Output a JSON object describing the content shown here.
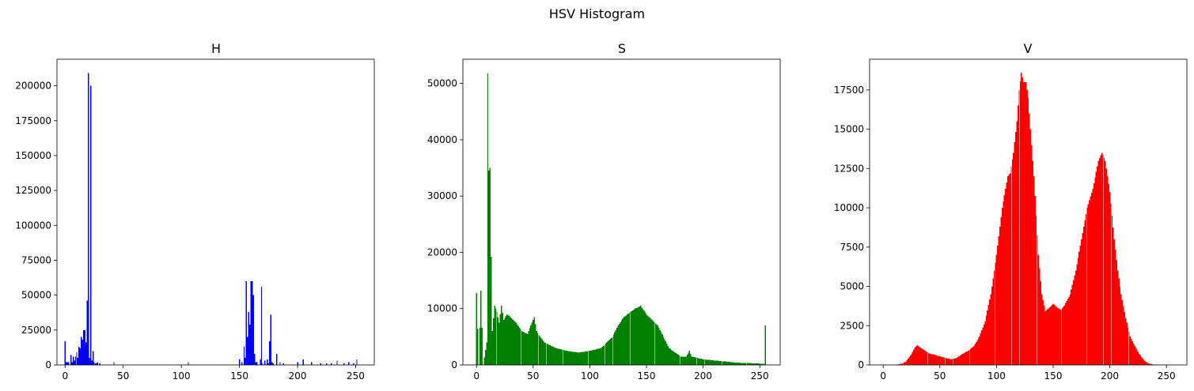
{
  "figure": {
    "title": "HSV Histogram"
  },
  "chart_data": [
    {
      "type": "bar",
      "title": "H",
      "color": "#0000ff",
      "xlim": [
        -7,
        266
      ],
      "ylim": [
        0,
        219000
      ],
      "xticks": [
        0,
        50,
        100,
        150,
        200,
        250
      ],
      "yticks": [
        0,
        25000,
        50000,
        75000,
        100000,
        125000,
        150000,
        175000,
        200000
      ],
      "x": [
        0,
        1,
        2,
        3,
        5,
        6,
        7,
        8,
        9,
        10,
        11,
        12,
        13,
        14,
        15,
        16,
        17,
        18,
        19,
        20,
        21,
        22,
        23,
        24,
        25,
        26,
        27,
        28,
        30,
        42,
        106,
        150,
        152,
        154,
        155,
        156,
        157,
        158,
        159,
        160,
        161,
        162,
        163,
        164,
        165,
        168,
        169,
        170,
        172,
        174,
        175,
        176,
        177,
        178,
        179,
        182,
        185,
        188,
        200,
        205,
        212,
        220,
        225,
        229,
        234,
        240,
        244,
        248,
        251
      ],
      "values": [
        17000,
        2000,
        2000,
        2000,
        7000,
        2000,
        6000,
        3000,
        6000,
        9000,
        5000,
        13000,
        12000,
        20000,
        18000,
        25000,
        25000,
        16000,
        46000,
        209000,
        5000,
        200000,
        3000,
        10000,
        2000,
        1000,
        1000,
        2000,
        1000,
        2000,
        2000,
        4000,
        2000,
        13000,
        5000,
        60000,
        20000,
        38000,
        29000,
        60000,
        60000,
        50000,
        8000,
        2000,
        2000,
        4000,
        56000,
        1000,
        3000,
        4000,
        1000,
        17000,
        36000,
        2000,
        1000,
        8000,
        2000,
        1000,
        2000,
        4000,
        2000,
        1000,
        1000,
        1000,
        3000,
        1000,
        2000,
        1000,
        4000
      ]
    },
    {
      "type": "bar",
      "title": "S",
      "color": "#008000",
      "xlim": [
        -12,
        268
      ],
      "ylim": [
        0,
        54300
      ],
      "xticks": [
        0,
        50,
        100,
        150,
        200,
        250
      ],
      "yticks": [
        0,
        10000,
        20000,
        30000,
        40000,
        50000
      ],
      "points": [
        [
          0,
          12800
        ],
        [
          2,
          0
        ],
        [
          4,
          13200
        ],
        [
          6,
          0
        ],
        [
          9,
          4000
        ],
        [
          10,
          51800
        ],
        [
          11,
          34500
        ],
        [
          12,
          35000
        ],
        [
          13,
          19200
        ],
        [
          14,
          6000
        ],
        [
          16,
          10500
        ],
        [
          18,
          9500
        ],
        [
          20,
          7500
        ],
        [
          22,
          10500
        ],
        [
          24,
          8000
        ],
        [
          27,
          9000
        ],
        [
          30,
          8500
        ],
        [
          35,
          7500
        ],
        [
          40,
          6000
        ],
        [
          45,
          5500
        ],
        [
          49,
          7500
        ],
        [
          51,
          8500
        ],
        [
          53,
          6000
        ],
        [
          60,
          4000
        ],
        [
          70,
          3000
        ],
        [
          80,
          2500
        ],
        [
          90,
          2200
        ],
        [
          100,
          2500
        ],
        [
          110,
          3000
        ],
        [
          120,
          5000
        ],
        [
          125,
          7000
        ],
        [
          130,
          8500
        ],
        [
          140,
          10000
        ],
        [
          145,
          10500
        ],
        [
          150,
          9000
        ],
        [
          155,
          8000
        ],
        [
          160,
          7000
        ],
        [
          165,
          5000
        ],
        [
          170,
          3000
        ],
        [
          180,
          1500
        ],
        [
          185,
          1500
        ],
        [
          188,
          2500
        ],
        [
          190,
          1500
        ],
        [
          200,
          1000
        ],
        [
          215,
          700
        ],
        [
          230,
          400
        ],
        [
          245,
          300
        ],
        [
          254,
          200
        ],
        [
          255,
          7000
        ]
      ]
    },
    {
      "type": "bar",
      "title": "V",
      "color": "#ff0000",
      "xlim": [
        -12,
        268
      ],
      "ylim": [
        0,
        19450
      ],
      "xticks": [
        0,
        50,
        100,
        150,
        200,
        250
      ],
      "yticks": [
        0,
        2500,
        5000,
        7500,
        10000,
        12500,
        15000,
        17500
      ],
      "points": [
        [
          10,
          0
        ],
        [
          15,
          50
        ],
        [
          20,
          200
        ],
        [
          25,
          700
        ],
        [
          28,
          1100
        ],
        [
          30,
          1250
        ],
        [
          33,
          1100
        ],
        [
          37,
          900
        ],
        [
          40,
          750
        ],
        [
          50,
          550
        ],
        [
          55,
          450
        ],
        [
          60,
          350
        ],
        [
          65,
          450
        ],
        [
          70,
          700
        ],
        [
          75,
          900
        ],
        [
          80,
          1200
        ],
        [
          85,
          1800
        ],
        [
          90,
          2800
        ],
        [
          95,
          4500
        ],
        [
          100,
          7000
        ],
        [
          105,
          10000
        ],
        [
          110,
          12000
        ],
        [
          112,
          12200
        ],
        [
          115,
          13500
        ],
        [
          118,
          15500
        ],
        [
          120,
          17500
        ],
        [
          122,
          18600
        ],
        [
          124,
          18000
        ],
        [
          126,
          18000
        ],
        [
          128,
          17000
        ],
        [
          130,
          15000
        ],
        [
          133,
          12000
        ],
        [
          137,
          7000
        ],
        [
          140,
          4500
        ],
        [
          143,
          3400
        ],
        [
          146,
          3600
        ],
        [
          150,
          3900
        ],
        [
          153,
          3700
        ],
        [
          157,
          3500
        ],
        [
          160,
          3800
        ],
        [
          165,
          4500
        ],
        [
          170,
          6000
        ],
        [
          175,
          8000
        ],
        [
          180,
          10000
        ],
        [
          185,
          11200
        ],
        [
          190,
          13000
        ],
        [
          193,
          13500
        ],
        [
          196,
          13000
        ],
        [
          200,
          11000
        ],
        [
          204,
          8000
        ],
        [
          207,
          6000
        ],
        [
          210,
          4500
        ],
        [
          214,
          3000
        ],
        [
          218,
          1800
        ],
        [
          222,
          1200
        ],
        [
          226,
          700
        ],
        [
          230,
          300
        ],
        [
          234,
          100
        ],
        [
          238,
          30
        ],
        [
          245,
          0
        ]
      ]
    }
  ]
}
